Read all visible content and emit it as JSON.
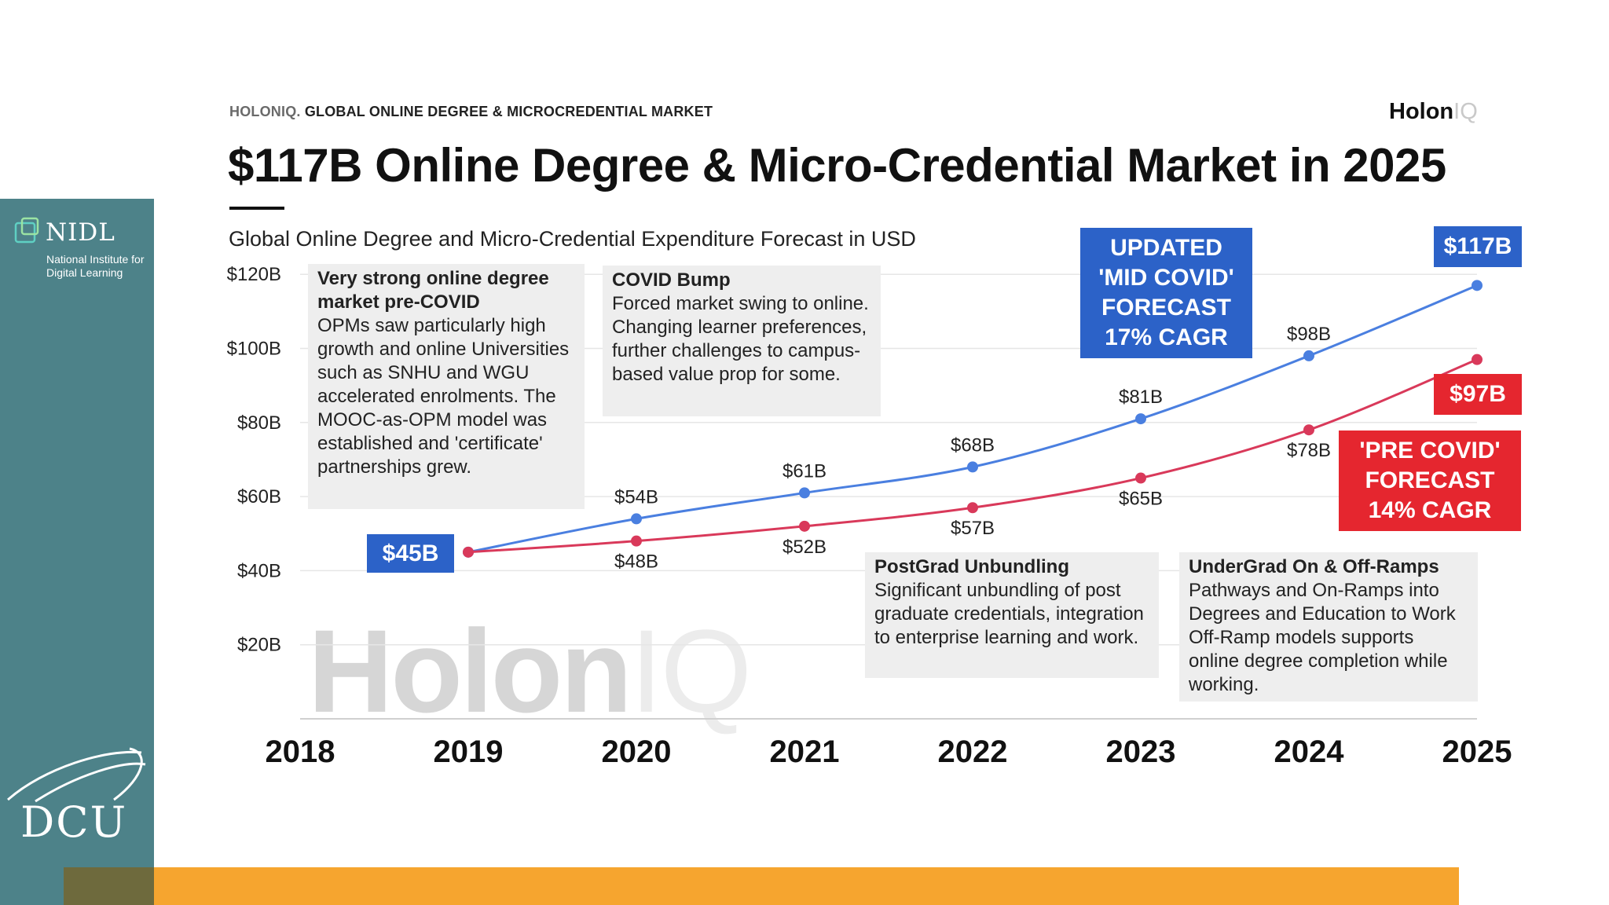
{
  "sidebar": {
    "nidl_name": "NIDL",
    "nidl_sub": "National Institute for Digital Learning",
    "dcu_name": "DCU",
    "bar_color": "#4d8289"
  },
  "header": {
    "brand_prefix": "HOLONIQ.",
    "brand_label": "GLOBAL ONLINE DEGREE & MICROCREDENTIAL MARKET",
    "logo_main": "Holon",
    "logo_iq": "IQ",
    "title": "$117B Online Degree & Micro-Credential Market in 2025",
    "subtitle": "Global Online Degree and Micro-Credential Expenditure Forecast in USD"
  },
  "watermark": {
    "main": "Holon",
    "iq": "IQ"
  },
  "notes": {
    "precovid": {
      "title": "Very strong online degree market pre-COVID",
      "body": "OPMs saw particularly high growth and online Universities such as SNHU and WGU accelerated enrolments. The MOOC-as-OPM model was established and 'certificate' partnerships grew."
    },
    "covid": {
      "title": "COVID Bump",
      "body": "Forced market swing to online. Changing learner preferences, further challenges to campus-based value prop for some."
    },
    "postgrad": {
      "title": "PostGrad Unbundling",
      "body": "Significant unbundling of post graduate credentials, integration to enterprise learning and work."
    },
    "undergrad": {
      "title": "UnderGrad On & Off-Ramps",
      "body": "Pathways and On-Ramps into Degrees and Education to Work Off-Ramp models supports online degree completion while working."
    }
  },
  "callouts": {
    "updated": "UPDATED\n'MID COVID'\nFORECAST\n17% CAGR",
    "precovid": "'PRE COVID'\nFORECAST\n14% CAGR",
    "start_value": "$45B",
    "end_blue": "$117B",
    "end_red": "$97B"
  },
  "colors": {
    "blue": "#4a7fe0",
    "red": "#d9395a",
    "callout_blue": "#2c62c8",
    "callout_red": "#e5262f",
    "accent_orange": "#f6a52f"
  },
  "chart_data": {
    "type": "line",
    "title": "Global Online Degree and Micro-Credential Expenditure Forecast in USD",
    "xlabel": "",
    "ylabel": "",
    "categories": [
      "2018",
      "2019",
      "2020",
      "2021",
      "2022",
      "2023",
      "2024",
      "2025"
    ],
    "y_ticks": [
      "$20B",
      "$40B",
      "$60B",
      "$80B",
      "$100B",
      "$120B"
    ],
    "ylim": [
      0,
      120
    ],
    "grid": true,
    "series": [
      {
        "name": "Updated 'Mid COVID' Forecast 17% CAGR",
        "color": "#4a7fe0",
        "x": [
          "2019",
          "2020",
          "2021",
          "2022",
          "2023",
          "2024",
          "2025"
        ],
        "values": [
          45,
          54,
          61,
          68,
          81,
          98,
          117
        ],
        "labels": [
          "",
          "$54B",
          "$61B",
          "$68B",
          "$81B",
          "$98B",
          ""
        ]
      },
      {
        "name": "'Pre COVID' Forecast 14% CAGR",
        "color": "#d9395a",
        "x": [
          "2019",
          "2020",
          "2021",
          "2022",
          "2023",
          "2024",
          "2025"
        ],
        "values": [
          45,
          48,
          52,
          57,
          65,
          78,
          97
        ],
        "labels": [
          "",
          "$48B",
          "$52B",
          "$57B",
          "$65B",
          "$78B",
          ""
        ]
      }
    ]
  }
}
